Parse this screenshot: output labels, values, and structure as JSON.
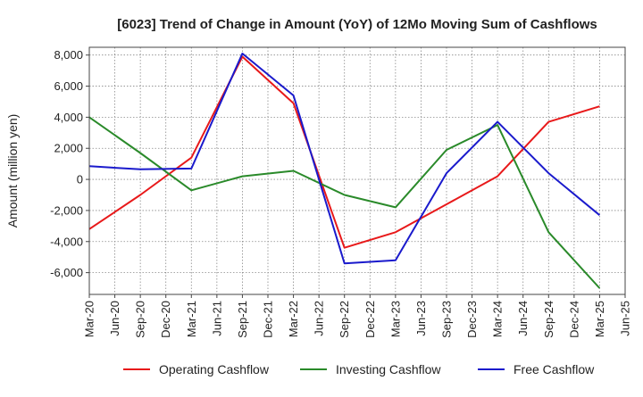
{
  "chart_data": {
    "type": "line",
    "title": "[6023]  Trend of Change in Amount (YoY) of 12Mo Moving Sum of Cashflows",
    "xlabel": "",
    "ylabel": "Amount (million yen)",
    "ylim": [
      -7400,
      8500
    ],
    "yticks": [
      -6000,
      -4000,
      -2000,
      0,
      2000,
      4000,
      6000,
      8000
    ],
    "ytick_labels": [
      "-6,000",
      "-4,000",
      "-2,000",
      "0",
      "2,000",
      "4,000",
      "6,000",
      "8,000"
    ],
    "categories": [
      "Mar-20",
      "Jun-20",
      "Sep-20",
      "Dec-20",
      "Mar-21",
      "Jun-21",
      "Sep-21",
      "Dec-21",
      "Mar-22",
      "Jun-22",
      "Sep-22",
      "Dec-22",
      "Mar-23",
      "Jun-23",
      "Sep-23",
      "Dec-23",
      "Mar-24",
      "Jun-24",
      "Sep-24",
      "Dec-24",
      "Mar-25",
      "Jun-25"
    ],
    "grid": true,
    "legend_position": "bottom",
    "series": [
      {
        "name": "Operating Cashflow",
        "color": "#e8191a",
        "x": [
          "Mar-20",
          "Sep-20",
          "Mar-21",
          "Sep-21",
          "Mar-22",
          "Sep-22",
          "Mar-23",
          "Sep-23",
          "Mar-24",
          "Sep-24",
          "Mar-25"
        ],
        "values": [
          -3200,
          -1000,
          1400,
          7900,
          4900,
          -4400,
          -3400,
          -1600,
          200,
          3700,
          4700
        ]
      },
      {
        "name": "Investing Cashflow",
        "color": "#2a8a2a",
        "x": [
          "Mar-20",
          "Sep-20",
          "Mar-21",
          "Sep-21",
          "Mar-22",
          "Sep-22",
          "Mar-23",
          "Sep-23",
          "Mar-24",
          "Sep-24",
          "Mar-25"
        ],
        "values": [
          4000,
          1700,
          -700,
          200,
          550,
          -1000,
          -1800,
          1900,
          3500,
          -3400,
          -7000
        ]
      },
      {
        "name": "Free Cashflow",
        "color": "#1a1acc",
        "x": [
          "Mar-20",
          "Sep-20",
          "Mar-21",
          "Sep-21",
          "Mar-22",
          "Sep-22",
          "Mar-23",
          "Sep-23",
          "Mar-24",
          "Sep-24",
          "Mar-25"
        ],
        "values": [
          850,
          650,
          700,
          8100,
          5400,
          -5400,
          -5200,
          400,
          3700,
          400,
          -2300
        ]
      }
    ]
  }
}
